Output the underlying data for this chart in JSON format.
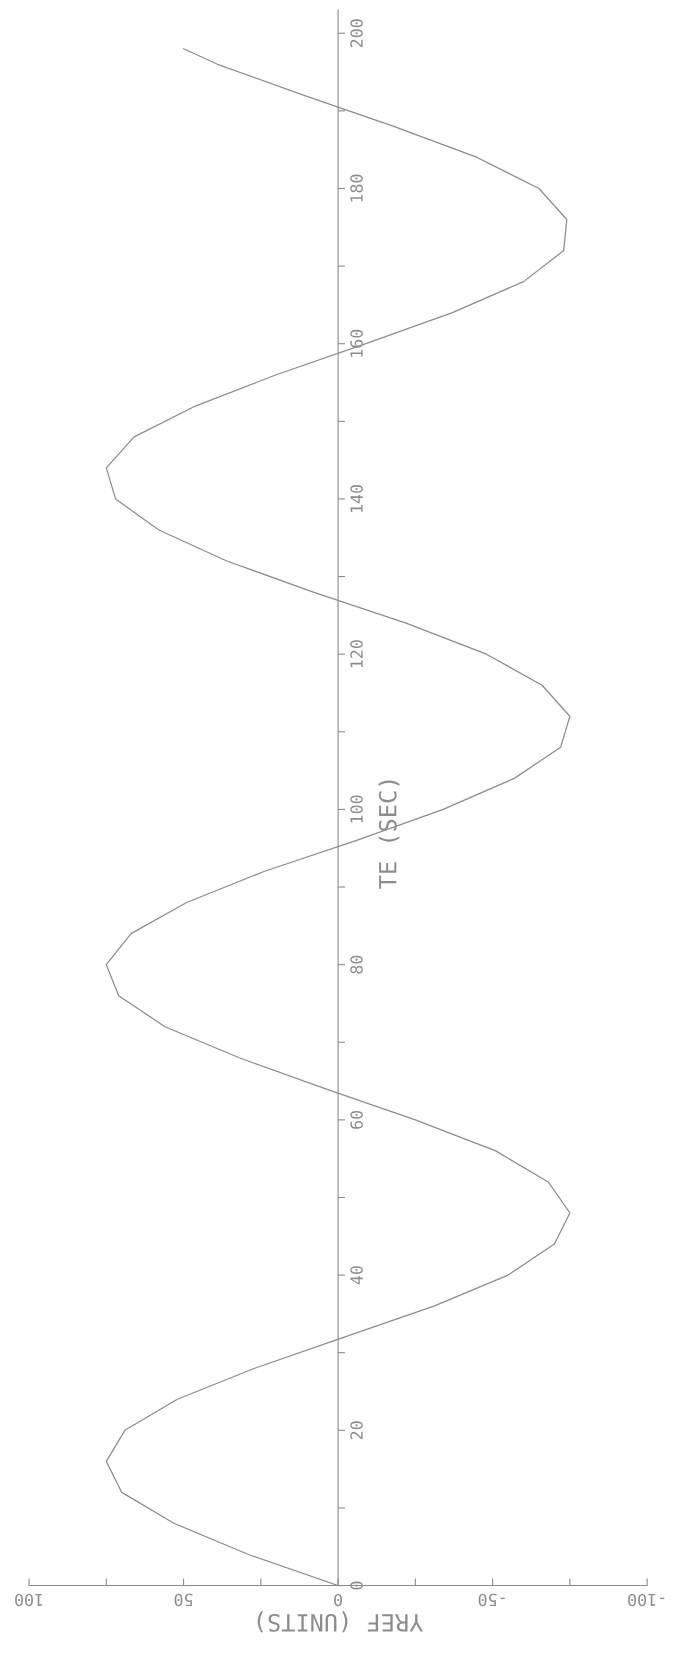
{
  "chart_data": {
    "type": "line",
    "xlabel": "YREF (UNITS)",
    "ylabel": "TE (SEC)",
    "series": [
      {
        "color": "#8c8c8c",
        "x": [
          0,
          29,
          53,
          70,
          75,
          69,
          52,
          27,
          -2,
          -31,
          -55,
          -70,
          -75,
          -68,
          -51,
          -25,
          4,
          32,
          56,
          71,
          75,
          67,
          49,
          24,
          -6,
          -34,
          -57,
          -72,
          -75,
          -66,
          -48,
          -22,
          8,
          36,
          58,
          72,
          75,
          66,
          46,
          20,
          -9,
          -37,
          -60,
          -73,
          -74,
          -65,
          -45,
          -18,
          11,
          39,
          50
        ],
        "values": [
          0,
          4,
          8,
          12,
          16,
          20,
          24,
          28,
          32,
          36,
          40,
          44,
          48,
          52,
          56,
          60,
          64,
          68,
          72,
          76,
          80,
          84,
          88,
          92,
          96,
          100,
          104,
          108,
          112,
          116,
          120,
          124,
          128,
          132,
          136,
          140,
          144,
          148,
          152,
          156,
          160,
          164,
          168,
          172,
          176,
          180,
          184,
          188,
          192,
          196,
          198
        ]
      }
    ],
    "xlim": [
      100,
      -100
    ],
    "ylim": [
      0,
      203
    ],
    "xticks": [
      100,
      {
        "value": 75,
        "label": null
      },
      50,
      {
        "value": 25,
        "label": null
      },
      0,
      {
        "value": -25,
        "label": null
      },
      -50,
      {
        "value": -75,
        "label": null
      },
      -100
    ],
    "yticks": [
      0,
      {
        "value": 10,
        "label": null
      },
      20,
      {
        "value": 30,
        "label": null
      },
      40,
      {
        "value": 50,
        "label": null
      },
      60,
      {
        "value": 70,
        "label": null
      },
      80,
      {
        "value": 90,
        "label": null
      },
      100,
      {
        "value": 110,
        "label": null
      },
      120,
      {
        "value": 130,
        "label": null
      },
      140,
      {
        "value": 150,
        "label": null
      },
      160,
      {
        "value": 170,
        "label": null
      },
      180,
      {
        "value": 190,
        "label": null
      },
      200
    ],
    "grid": false,
    "legend": false,
    "marker": "none",
    "line_style": "solid"
  }
}
